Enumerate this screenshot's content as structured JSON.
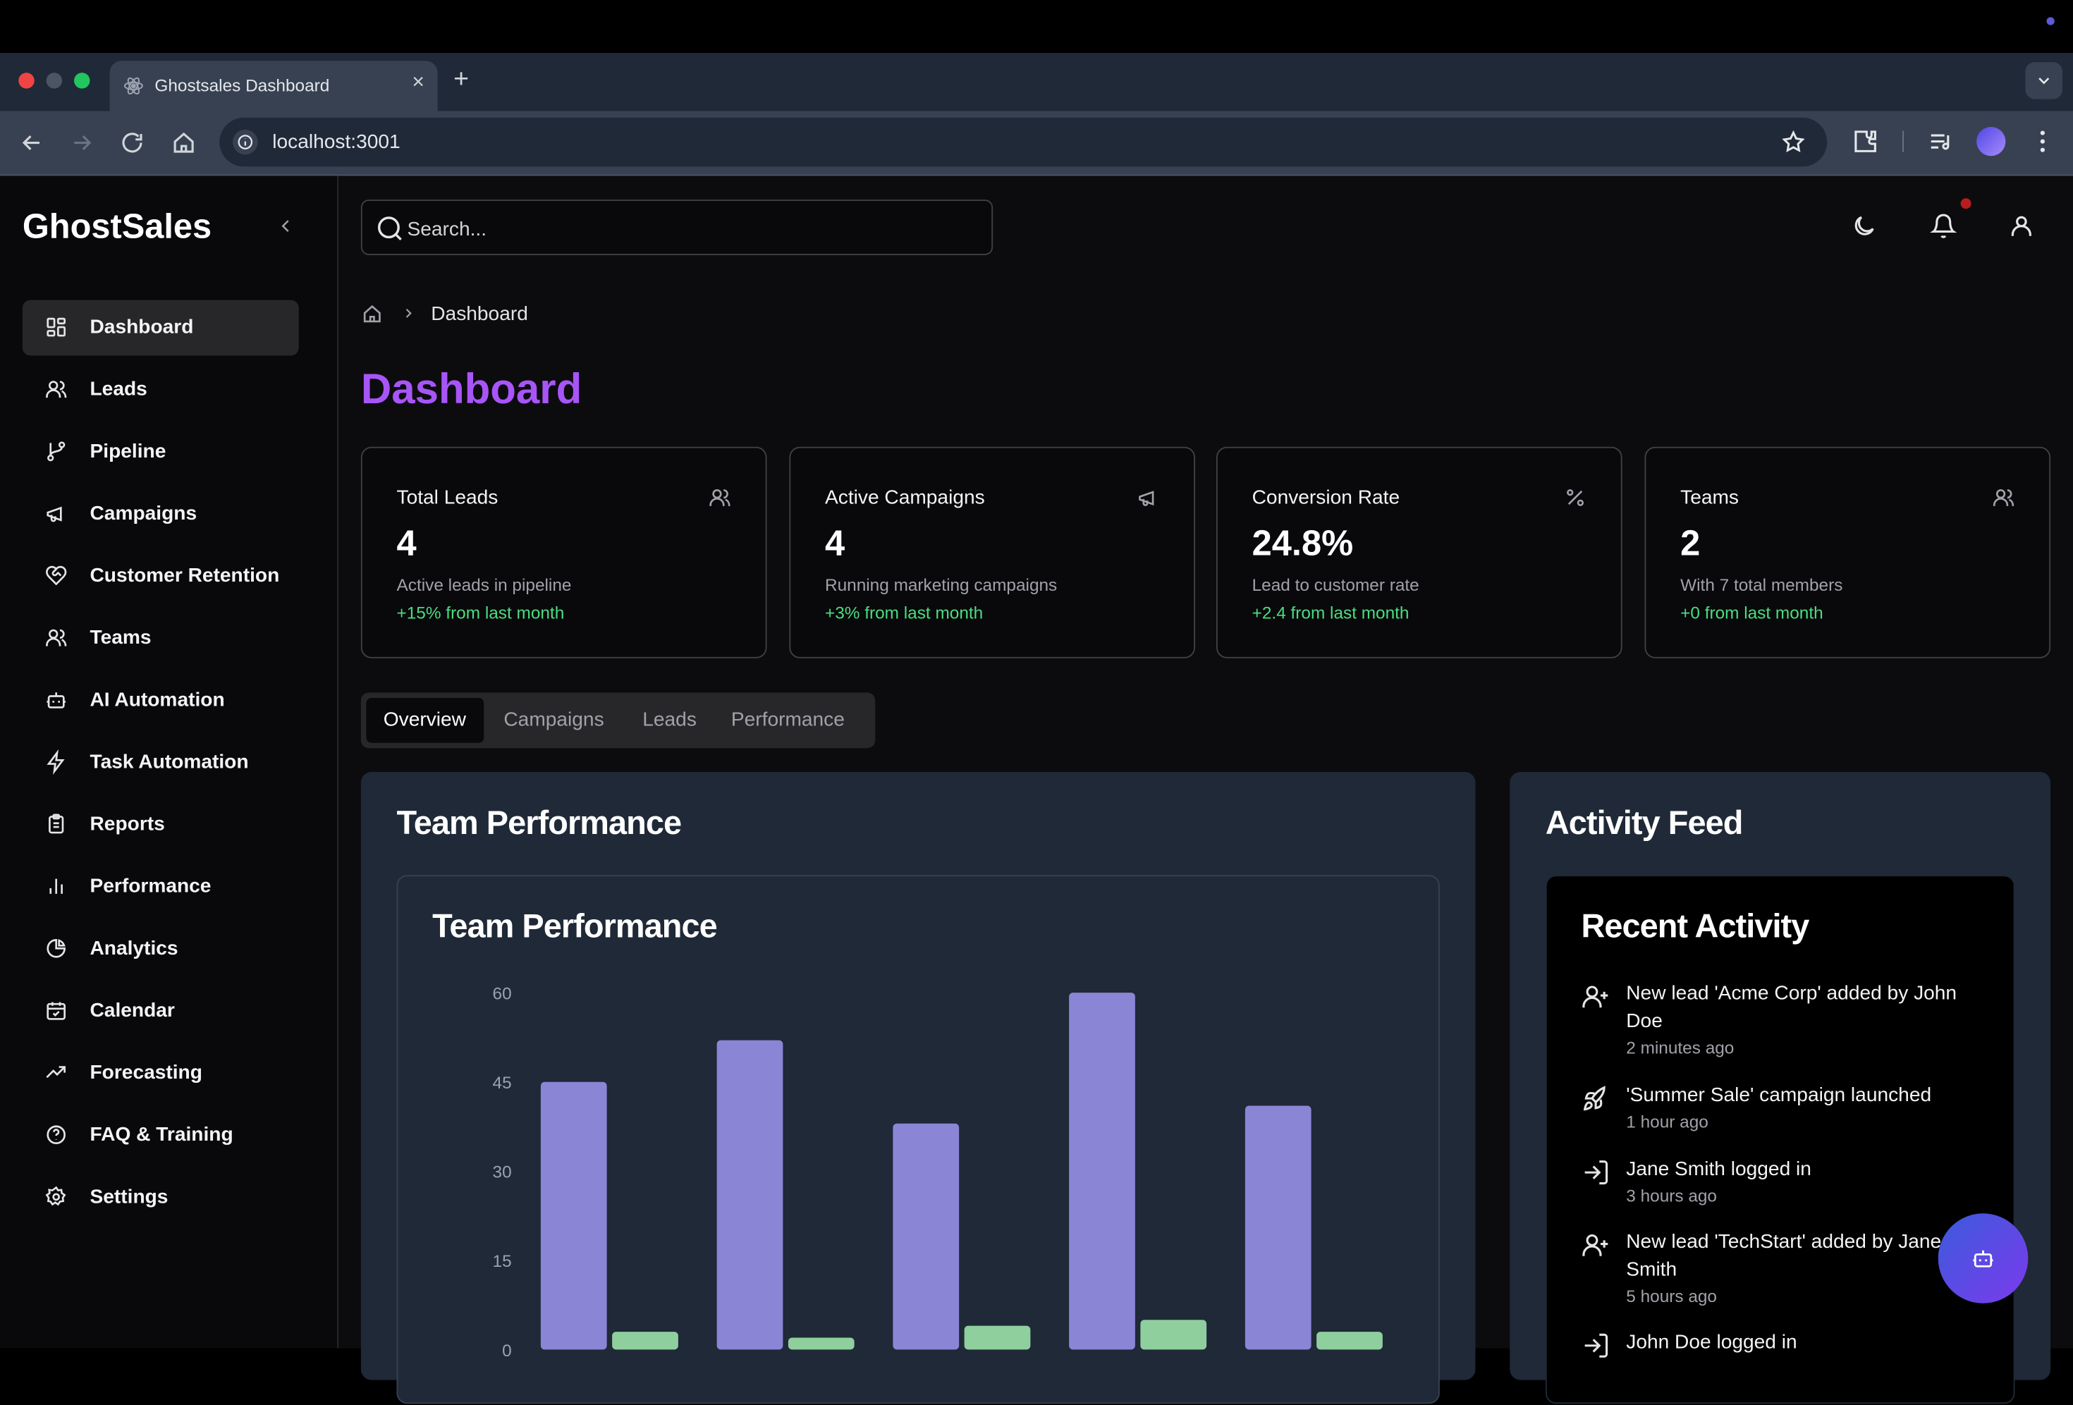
{
  "browser": {
    "tab_title": "Ghostsales Dashboard",
    "url": "localhost:3001"
  },
  "sidebar": {
    "brand": "GhostSales",
    "items": [
      {
        "label": "Dashboard",
        "icon": "layout-dashboard-icon",
        "active": true
      },
      {
        "label": "Leads",
        "icon": "users-icon"
      },
      {
        "label": "Pipeline",
        "icon": "git-branch-icon"
      },
      {
        "label": "Campaigns",
        "icon": "megaphone-icon"
      },
      {
        "label": "Customer Retention",
        "icon": "heart-handshake-icon"
      },
      {
        "label": "Teams",
        "icon": "users-icon"
      },
      {
        "label": "AI Automation",
        "icon": "bot-icon"
      },
      {
        "label": "Task Automation",
        "icon": "zap-icon"
      },
      {
        "label": "Reports",
        "icon": "clipboard-icon"
      },
      {
        "label": "Performance",
        "icon": "bar-chart-icon"
      },
      {
        "label": "Analytics",
        "icon": "pie-chart-icon"
      },
      {
        "label": "Calendar",
        "icon": "calendar-icon"
      },
      {
        "label": "Forecasting",
        "icon": "trending-up-icon"
      },
      {
        "label": "FAQ & Training",
        "icon": "help-circle-icon"
      },
      {
        "label": "Settings",
        "icon": "settings-icon"
      }
    ]
  },
  "header": {
    "search_placeholder": "Search..."
  },
  "breadcrumb": {
    "current": "Dashboard"
  },
  "page": {
    "title": "Dashboard"
  },
  "stats": [
    {
      "title": "Total Leads",
      "value": "4",
      "desc": "Active leads in pipeline",
      "delta": "+15% from last month",
      "icon": "users-icon"
    },
    {
      "title": "Active Campaigns",
      "value": "4",
      "desc": "Running marketing campaigns",
      "delta": "+3% from last month",
      "icon": "megaphone-icon"
    },
    {
      "title": "Conversion Rate",
      "value": "24.8%",
      "desc": "Lead to customer rate",
      "delta": "+2.4 from last month",
      "icon": "percent-icon"
    },
    {
      "title": "Teams",
      "value": "2",
      "desc": "With 7 total members",
      "delta": "+0 from last month",
      "icon": "users-icon"
    }
  ],
  "tabs": [
    "Overview",
    "Campaigns",
    "Leads",
    "Performance"
  ],
  "team_performance": {
    "panel_title": "Team Performance",
    "card_title": "Team Performance"
  },
  "chart_data": {
    "type": "bar",
    "title": "Team Performance",
    "ylim": [
      0,
      60
    ],
    "yticks": [
      0,
      15,
      30,
      45,
      60
    ],
    "grid": false,
    "series": [
      {
        "color": "#8b85d6",
        "values": [
          45,
          52,
          38,
          60,
          41
        ]
      },
      {
        "color": "#8fcf9e",
        "values": [
          3,
          2,
          4,
          5,
          3
        ]
      }
    ]
  },
  "activity": {
    "panel_title": "Activity Feed",
    "card_title": "Recent Activity",
    "items": [
      {
        "text": "New lead 'Acme Corp' added by John Doe",
        "time": "2 minutes ago",
        "icon": "user-plus-icon"
      },
      {
        "text": "'Summer Sale' campaign launched",
        "time": "1 hour ago",
        "icon": "rocket-icon"
      },
      {
        "text": "Jane Smith logged in",
        "time": "3 hours ago",
        "icon": "log-in-icon"
      },
      {
        "text": "New lead 'TechStart' added by Jane Smith",
        "time": "5 hours ago",
        "icon": "user-plus-icon"
      },
      {
        "text": "John Doe logged in",
        "time": "",
        "icon": "log-in-icon"
      }
    ]
  },
  "colors": {
    "accent": "#a855f7",
    "positive": "#4ade80",
    "fab_start": "#3b5bdb",
    "fab_end": "#7c3aed"
  }
}
